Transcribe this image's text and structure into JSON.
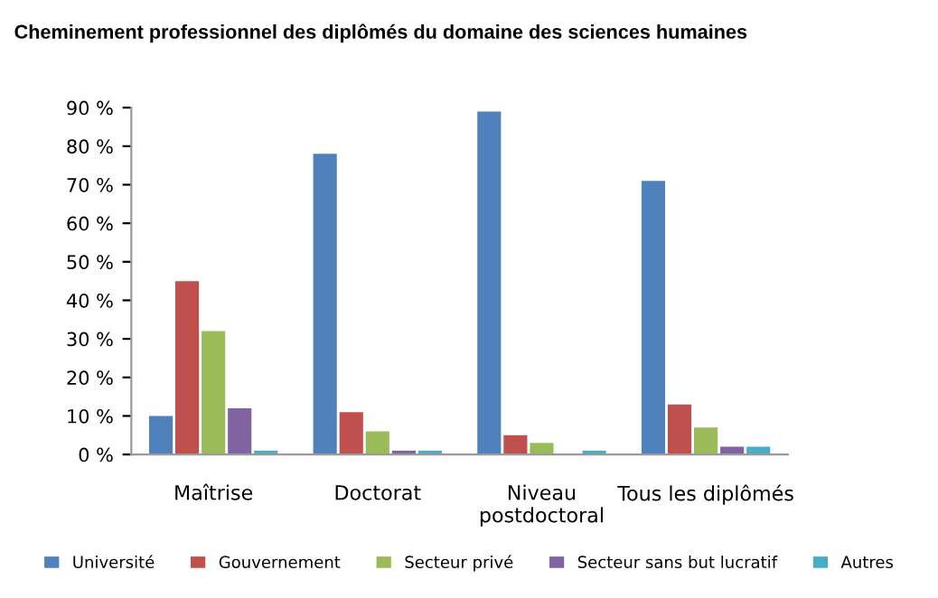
{
  "chart_data": {
    "type": "bar",
    "title": "Cheminement professionnel des diplômés du domaine des sciences humaines",
    "categories": [
      "Maîtrise",
      "Doctorat",
      "Niveau\npostdoctoral",
      "Tous les diplômés"
    ],
    "series": [
      {
        "name": "Université",
        "color": "#4f81bd",
        "values": [
          10,
          78,
          89,
          71
        ]
      },
      {
        "name": "Gouvernement",
        "color": "#c0504d",
        "values": [
          45,
          11,
          5,
          13
        ]
      },
      {
        "name": "Secteur privé",
        "color": "#9bbb59",
        "values": [
          32,
          6,
          3,
          7
        ]
      },
      {
        "name": "Secteur sans but lucratif",
        "color": "#8064a2",
        "values": [
          12,
          1,
          0,
          2
        ]
      },
      {
        "name": "Autres",
        "color": "#4bacc6",
        "values": [
          1,
          1,
          1,
          2
        ]
      }
    ],
    "ylim": [
      0,
      90
    ],
    "yticks": [
      {
        "value": 0,
        "label": "0 %"
      },
      {
        "value": 10,
        "label": "10 %"
      },
      {
        "value": 20,
        "label": "20 %"
      },
      {
        "value": 30,
        "label": "30 %"
      },
      {
        "value": 40,
        "label": "40 %"
      },
      {
        "value": 50,
        "label": "50 %"
      },
      {
        "value": 60,
        "label": "60 %"
      },
      {
        "value": 70,
        "label": "70 %"
      },
      {
        "value": 80,
        "label": "80 %"
      },
      {
        "value": 90,
        "label": "90 %"
      }
    ],
    "grid": false,
    "legend": "bottom"
  }
}
